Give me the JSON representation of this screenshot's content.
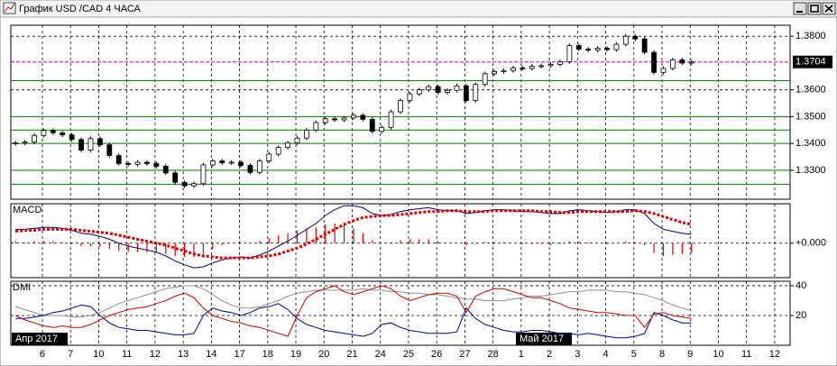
{
  "window_title": "График USD /CAD  4 ЧАСА",
  "chart_data": [
    {
      "type": "candlestick",
      "open": [
        1.34,
        1.3402,
        1.3405,
        1.343,
        1.3448,
        1.344,
        1.3432,
        1.3415,
        1.3375,
        1.3418,
        1.3395,
        1.3355,
        1.3325,
        1.3322,
        1.333,
        1.3325,
        1.3315,
        1.329,
        1.3255,
        1.3242,
        1.325,
        1.332,
        1.3335,
        1.3328,
        1.333,
        1.3318,
        1.3292,
        1.3335,
        1.336,
        1.3385,
        1.3402,
        1.342,
        1.345,
        1.3478,
        1.3492,
        1.3488,
        1.3495,
        1.3505,
        1.349,
        1.3445,
        1.346,
        1.3518,
        1.356,
        1.3585,
        1.36,
        1.3612,
        1.359,
        1.3598,
        1.3615,
        1.356,
        1.362,
        1.366,
        1.3668,
        1.3672,
        1.3682,
        1.368,
        1.3688,
        1.369,
        1.3695,
        1.3705,
        1.3765,
        1.3752,
        1.3748,
        1.3755,
        1.375,
        1.377,
        1.38,
        1.379,
        1.374,
        1.3665,
        1.368,
        1.3712,
        1.37
      ],
      "high": [
        1.341,
        1.3413,
        1.3438,
        1.3456,
        1.3456,
        1.3448,
        1.344,
        1.3423,
        1.3426,
        1.3426,
        1.3403,
        1.3363,
        1.3333,
        1.3338,
        1.3338,
        1.3333,
        1.3323,
        1.3298,
        1.3263,
        1.3258,
        1.3328,
        1.3343,
        1.3343,
        1.3338,
        1.3338,
        1.3326,
        1.3343,
        1.3368,
        1.3393,
        1.341,
        1.3428,
        1.3458,
        1.3486,
        1.35,
        1.35,
        1.3503,
        1.3513,
        1.3513,
        1.3498,
        1.3468,
        1.3526,
        1.3568,
        1.3593,
        1.3608,
        1.362,
        1.362,
        1.3606,
        1.3623,
        1.3623,
        1.3628,
        1.3668,
        1.3676,
        1.368,
        1.369,
        1.369,
        1.3696,
        1.3698,
        1.3703,
        1.3713,
        1.3773,
        1.3773,
        1.376,
        1.3763,
        1.3763,
        1.3778,
        1.3808,
        1.3808,
        1.3798,
        1.3748,
        1.3688,
        1.372,
        1.372,
        1.3712
      ],
      "low": [
        1.3392,
        1.3394,
        1.3397,
        1.3422,
        1.3432,
        1.3424,
        1.3407,
        1.3367,
        1.3367,
        1.3387,
        1.3347,
        1.3317,
        1.3314,
        1.3314,
        1.3317,
        1.3307,
        1.3282,
        1.3247,
        1.3234,
        1.3234,
        1.3242,
        1.3312,
        1.332,
        1.332,
        1.331,
        1.3284,
        1.3284,
        1.3327,
        1.3352,
        1.3377,
        1.3394,
        1.3412,
        1.3442,
        1.347,
        1.348,
        1.348,
        1.3487,
        1.3482,
        1.3437,
        1.3437,
        1.3452,
        1.351,
        1.3552,
        1.3577,
        1.3592,
        1.3582,
        1.3582,
        1.359,
        1.3552,
        1.3552,
        1.3612,
        1.3652,
        1.366,
        1.3664,
        1.3672,
        1.3672,
        1.368,
        1.3682,
        1.3687,
        1.3697,
        1.3744,
        1.374,
        1.374,
        1.3742,
        1.3742,
        1.3762,
        1.3782,
        1.3732,
        1.3657,
        1.3657,
        1.3672,
        1.3692,
        1.3692
      ],
      "close": [
        1.3402,
        1.3405,
        1.343,
        1.3448,
        1.344,
        1.3432,
        1.3415,
        1.3375,
        1.3418,
        1.3395,
        1.3355,
        1.3325,
        1.3322,
        1.333,
        1.3325,
        1.3315,
        1.329,
        1.3255,
        1.3242,
        1.325,
        1.332,
        1.3335,
        1.3328,
        1.333,
        1.3318,
        1.3292,
        1.3335,
        1.336,
        1.3385,
        1.3402,
        1.342,
        1.345,
        1.3478,
        1.3492,
        1.3488,
        1.3495,
        1.3505,
        1.349,
        1.3445,
        1.346,
        1.3518,
        1.356,
        1.3585,
        1.36,
        1.3612,
        1.359,
        1.3598,
        1.3615,
        1.356,
        1.362,
        1.366,
        1.3668,
        1.3672,
        1.3682,
        1.368,
        1.3688,
        1.369,
        1.3695,
        1.3705,
        1.3765,
        1.3752,
        1.3748,
        1.3755,
        1.375,
        1.377,
        1.38,
        1.379,
        1.374,
        1.3665,
        1.368,
        1.3712,
        1.37,
        1.3704
      ],
      "up_color": "#ffffff",
      "down_color": "#000000",
      "ylim": [
        1.3192,
        1.3841
      ],
      "yticks": [
        {
          "value": 1.38,
          "label": "1.3800"
        },
        {
          "value": 1.36,
          "label": "1.3600"
        },
        {
          "value": 1.35,
          "label": "1.3500"
        },
        {
          "value": 1.34,
          "label": "1.3400"
        },
        {
          "value": 1.33,
          "label": "1.3300"
        }
      ],
      "grid": true,
      "last_price": {
        "value": 1.3704,
        "label": "1.3704"
      },
      "last_price_color": "#c000c0",
      "levels": [
        1.3634,
        1.35,
        1.345,
        1.34,
        1.33,
        1.3248
      ],
      "levels_color": "#008000",
      "x_tick_labels": [
        "6",
        "7",
        "10",
        "11",
        "12",
        "13",
        "14",
        "17",
        "18",
        "19",
        "20",
        "21",
        "24",
        "25",
        "26",
        "27",
        "28",
        "1",
        "2",
        "3",
        "4",
        "5",
        "8",
        "9",
        "10",
        "11",
        "12"
      ],
      "month_labels": [
        "Апр 2017",
        "Май 2017"
      ]
    },
    {
      "type": "macd",
      "title": "MACD",
      "series": [
        {
          "color": "#000080",
          "values": [
            0.0014,
            0.0014,
            0.0015,
            0.0016,
            0.0016,
            0.0015,
            0.0013,
            0.001,
            0.0009,
            0.0007,
            0.0004,
            0.0,
            -0.0003,
            -0.0005,
            -0.0007,
            -0.0009,
            -0.0013,
            -0.0018,
            -0.0022,
            -0.0025,
            -0.0024,
            -0.002,
            -0.0017,
            -0.0015,
            -0.0014,
            -0.0015,
            -0.0012,
            -0.0008,
            -0.0003,
            0.0002,
            0.0008,
            0.0014,
            0.002,
            0.0028,
            0.0034,
            0.0038,
            0.0038,
            0.0036,
            0.003,
            0.0028,
            0.0029,
            0.0032,
            0.0034,
            0.0035,
            0.0036,
            0.0034,
            0.0033,
            0.0033,
            0.003,
            0.0031,
            0.0033,
            0.0034,
            0.0034,
            0.0033,
            0.0032,
            0.0032,
            0.0031,
            0.003,
            0.003,
            0.0033,
            0.0034,
            0.0033,
            0.0032,
            0.0031,
            0.0032,
            0.0034,
            0.0034,
            0.003,
            0.002,
            0.0014,
            0.0012,
            0.001,
            0.0009
          ]
        },
        {
          "color": "#dd0000",
          "values": [
            0.0012,
            0.0013,
            0.0013,
            0.0014,
            0.0014,
            0.0014,
            0.0014,
            0.0013,
            0.0012,
            0.0011,
            0.001,
            0.0008,
            0.0006,
            0.0004,
            0.0002,
            0.0,
            -0.0002,
            -0.0005,
            -0.0008,
            -0.0011,
            -0.0013,
            -0.0014,
            -0.0015,
            -0.0015,
            -0.0015,
            -0.0015,
            -0.0014,
            -0.0013,
            -0.0011,
            -0.0008,
            -0.0005,
            -0.0001,
            0.0004,
            0.0009,
            0.0014,
            0.0019,
            0.0023,
            0.0026,
            0.0027,
            0.0028,
            0.0028,
            0.0029,
            0.003,
            0.0031,
            0.0032,
            0.0032,
            0.0033,
            0.0033,
            0.0032,
            0.0032,
            0.0032,
            0.0033,
            0.0033,
            0.0033,
            0.0033,
            0.0033,
            0.0032,
            0.0032,
            0.0031,
            0.0031,
            0.0032,
            0.0032,
            0.0032,
            0.0032,
            0.0032,
            0.0032,
            0.0033,
            0.0032,
            0.003,
            0.0027,
            0.0024,
            0.0021,
            0.0019
          ]
        }
      ],
      "histogram": {
        "color": "#dd0000",
        "values": [
          0.0002,
          0.0001,
          0.0002,
          0.0002,
          0.0002,
          0.0001,
          -0.0001,
          -0.0003,
          -0.0003,
          -0.0004,
          -0.0006,
          -0.0008,
          -0.0009,
          -0.0009,
          -0.0009,
          -0.0009,
          -0.0011,
          -0.0013,
          -0.0014,
          -0.0014,
          -0.0011,
          -0.0006,
          -0.0002,
          0.0,
          0.0001,
          0.0,
          0.0002,
          0.0005,
          0.0008,
          0.001,
          0.0013,
          0.0015,
          0.0016,
          0.0019,
          0.002,
          0.0019,
          0.0015,
          0.001,
          0.0003,
          0.0,
          0.0001,
          0.0003,
          0.0004,
          0.0004,
          0.0004,
          0.0002,
          0.0,
          0.0,
          -0.0002,
          -0.0001,
          0.0001,
          0.0001,
          0.0001,
          0.0,
          -0.0001,
          -0.0001,
          -0.0001,
          -0.0002,
          -0.0001,
          0.0002,
          0.0002,
          0.0001,
          0.0,
          -0.0001,
          0.0,
          0.0002,
          0.0001,
          -0.0002,
          -0.001,
          -0.0013,
          -0.0012,
          -0.0011,
          -0.001
        ]
      },
      "ylim": [
        -0.0035,
        0.004
      ],
      "yticks": [
        {
          "value": 0,
          "label": "+0.000"
        }
      ]
    },
    {
      "type": "line",
      "title": "DMI",
      "series": [
        {
          "color": "#909090",
          "values": [
            26,
            24,
            22,
            20,
            20,
            20,
            19,
            19,
            20,
            22,
            25,
            28,
            30,
            32,
            34,
            36,
            38,
            39,
            40,
            40,
            38,
            34,
            30,
            27,
            25,
            25,
            26,
            28,
            30,
            33,
            35,
            36,
            37,
            37,
            37,
            37,
            37,
            38,
            37,
            37,
            36,
            36,
            35,
            35,
            34,
            34,
            33,
            32,
            31,
            31,
            30,
            30,
            30,
            31,
            32,
            33,
            33,
            34,
            35,
            36,
            36,
            37,
            37,
            37,
            36,
            36,
            35,
            34,
            32,
            30,
            27,
            25,
            23
          ]
        },
        {
          "color": "#000090",
          "values": [
            18,
            18,
            19,
            20,
            22,
            23,
            25,
            27,
            26,
            20,
            15,
            12,
            11,
            10,
            10,
            9,
            8,
            7,
            7,
            8,
            20,
            25,
            23,
            22,
            20,
            22,
            25,
            26,
            28,
            24,
            18,
            14,
            12,
            10,
            9,
            8,
            7,
            6,
            8,
            14,
            15,
            12,
            10,
            9,
            8,
            8,
            8,
            9,
            25,
            18,
            14,
            12,
            10,
            9,
            9,
            10,
            10,
            9,
            8,
            8,
            7,
            8,
            7,
            6,
            5,
            5,
            6,
            8,
            22,
            20,
            17,
            15,
            15
          ]
        },
        {
          "color": "#cc0000",
          "values": [
            20,
            17,
            15,
            13,
            12,
            13,
            12,
            12,
            14,
            17,
            20,
            22,
            24,
            25,
            26,
            28,
            30,
            33,
            35,
            32,
            25,
            20,
            18,
            16,
            15,
            13,
            12,
            10,
            8,
            6,
            20,
            32,
            36,
            38,
            40,
            36,
            34,
            36,
            38,
            40,
            38,
            33,
            30,
            32,
            34,
            35,
            35,
            33,
            22,
            33,
            36,
            38,
            38,
            36,
            34,
            32,
            32,
            30,
            28,
            25,
            24,
            23,
            22,
            22,
            21,
            20,
            20,
            12,
            21,
            22,
            20,
            19,
            18
          ]
        }
      ],
      "ylim": [
        0,
        43
      ],
      "yticks": [
        20,
        40
      ],
      "grid": true
    }
  ]
}
